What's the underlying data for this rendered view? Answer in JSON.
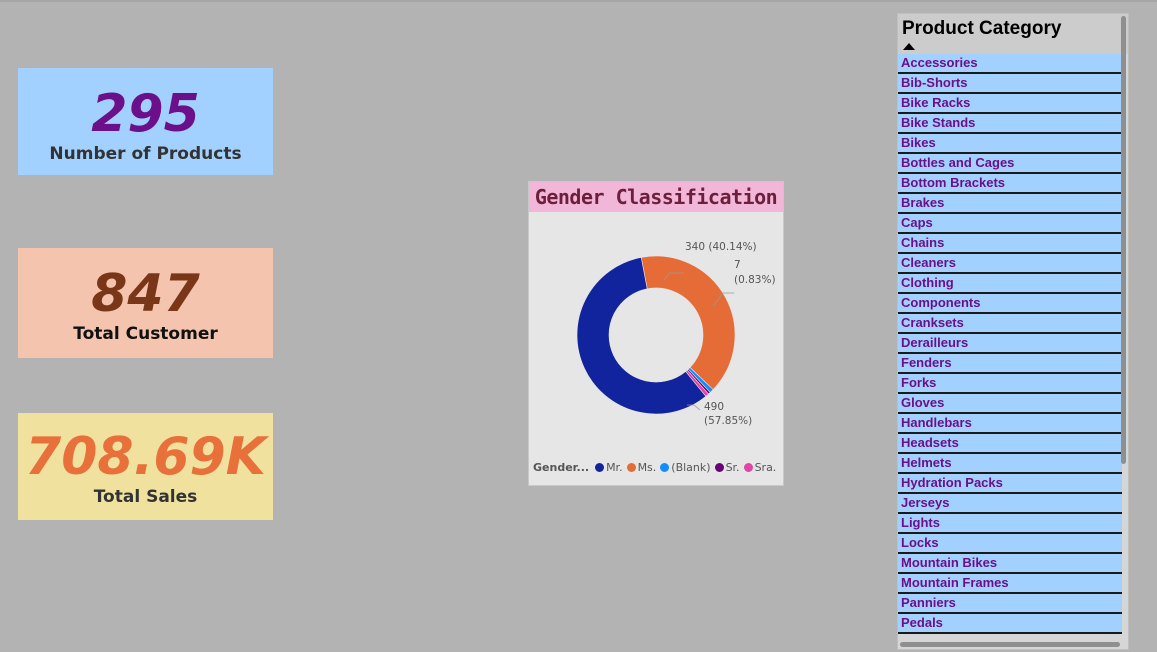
{
  "kpis": {
    "products": {
      "value": "295",
      "label": "Number of Products"
    },
    "customers": {
      "value": "847",
      "label": "Total Customer"
    },
    "sales": {
      "value": "708.69K",
      "label": "Total Sales"
    }
  },
  "gender_chart": {
    "title": "Gender Classification",
    "label_ms": "340 (40.14%)",
    "label_small_value": "7",
    "label_small_pct": "(0.83%)",
    "label_mr_value": "490",
    "label_mr_pct": "(57.85%)",
    "legend_title": "Gender...",
    "legend": [
      {
        "name": "Mr.",
        "color": "#12239e"
      },
      {
        "name": "Ms.",
        "color": "#e66c37"
      },
      {
        "name": "(Blank)",
        "color": "#118dff"
      },
      {
        "name": "Sr.",
        "color": "#6b007b"
      },
      {
        "name": "Sra.",
        "color": "#e044a7"
      }
    ]
  },
  "chart_data": {
    "type": "pie",
    "title": "Gender Classification",
    "categories": [
      "Mr.",
      "Ms.",
      "(Blank)",
      "Sr.",
      "Sra."
    ],
    "values": [
      490,
      340,
      7,
      4,
      6
    ],
    "colors": [
      "#12239e",
      "#e66c37",
      "#118dff",
      "#6b007b",
      "#e044a7"
    ],
    "legend_position": "bottom-left"
  },
  "slicer": {
    "title": "Product Category",
    "items": [
      "Accessories",
      "Bib-Shorts",
      "Bike Racks",
      "Bike Stands",
      "Bikes",
      "Bottles and Cages",
      "Bottom Brackets",
      "Brakes",
      "Caps",
      "Chains",
      "Cleaners",
      "Clothing",
      "Components",
      "Cranksets",
      "Derailleurs",
      "Fenders",
      "Forks",
      "Gloves",
      "Handlebars",
      "Headsets",
      "Helmets",
      "Hydration Packs",
      "Jerseys",
      "Lights",
      "Locks",
      "Mountain Bikes",
      "Mountain Frames",
      "Panniers",
      "Pedals"
    ]
  }
}
